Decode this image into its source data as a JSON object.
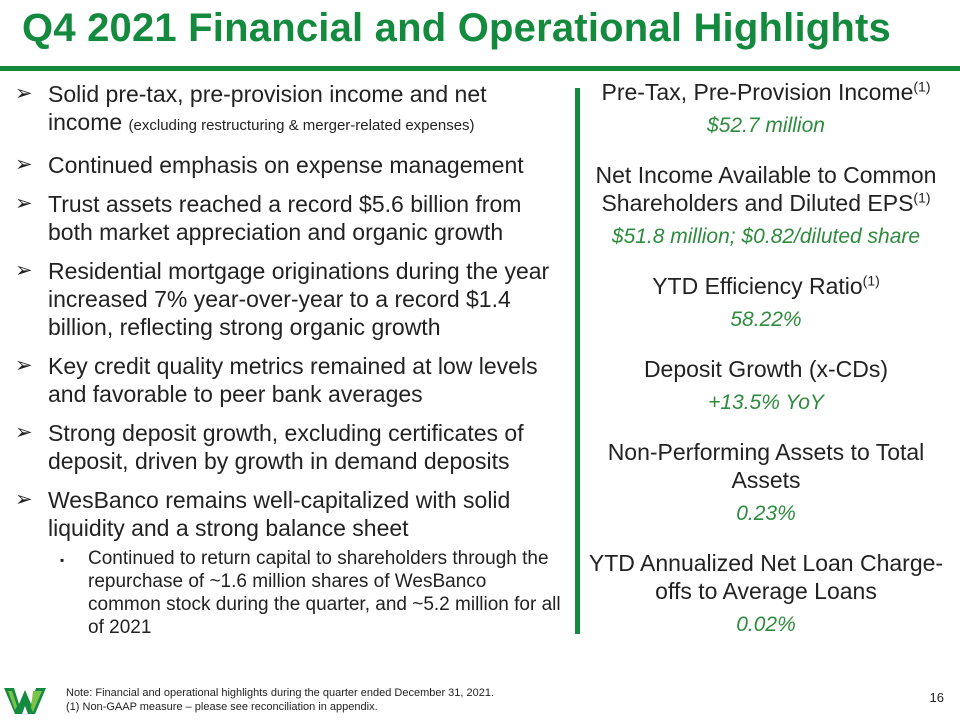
{
  "title": "Q4 2021 Financial and Operational Highlights",
  "bullets": [
    {
      "text": "Solid pre-tax, pre-provision income and net income",
      "note": "(excluding restructuring & merger-related expenses)"
    },
    {
      "text": "Continued emphasis on expense management"
    },
    {
      "text": "Trust assets reached a record $5.6 billion from both market appreciation and organic growth"
    },
    {
      "text": "Residential mortgage originations during the year increased 7% year-over-year to a record $1.4 billion, reflecting strong organic growth"
    },
    {
      "text": "Key credit quality metrics remained at low levels and favorable to peer bank averages"
    },
    {
      "text": "Strong deposit growth, excluding certificates of deposit, driven by growth in demand deposits"
    },
    {
      "text": "WesBanco remains well-capitalized with solid liquidity and a strong balance sheet"
    }
  ],
  "sub_bullet": "Continued to return capital to shareholders through the repurchase of ~1.6 million shares of WesBanco common stock during the quarter, and ~5.2 million for all of 2021",
  "bullet_marker": "➢",
  "sub_marker": "▪",
  "metrics": [
    {
      "label": "Pre-Tax, Pre-Provision Income",
      "sup": "(1)",
      "value": "$52.7 million"
    },
    {
      "label": "Net Income Available to Common Shareholders and Diluted EPS",
      "sup": "(1)",
      "value": "$51.8 million; $0.82/diluted share"
    },
    {
      "label": "YTD Efficiency Ratio",
      "sup": "(1)",
      "value": "58.22%"
    },
    {
      "label": "Deposit Growth (x-CDs)",
      "sup": "",
      "value": "+13.5% YoY"
    },
    {
      "label": "Non-Performing Assets to Total Assets",
      "sup": "",
      "value": "0.23%"
    },
    {
      "label": "YTD Annualized Net Loan Charge-offs to Average Loans",
      "sup": "",
      "value": "0.02%"
    }
  ],
  "footnotes": [
    "Note: Financial and operational highlights during the quarter ended December 31, 2021.",
    "(1) Non-GAAP measure – please see reconciliation in appendix."
  ],
  "page_number": "16",
  "colors": {
    "brand_green": "#138a3e",
    "value_green": "#2e8b3e"
  }
}
